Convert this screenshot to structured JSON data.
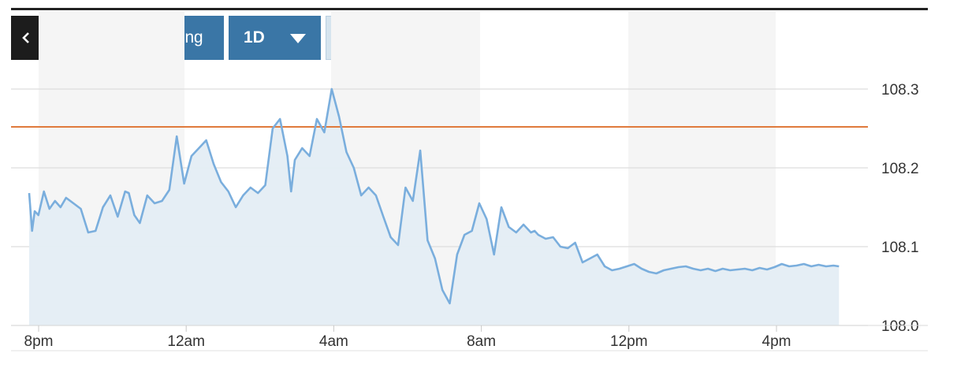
{
  "toolbar": {
    "back_icon": "chevron-left-icon",
    "advanced_label": "Advanced Charting",
    "range_label": "1D",
    "range_icon": "caret-down-icon",
    "dollar_label": "$",
    "percent_label": "%"
  },
  "chart_data": {
    "type": "area",
    "title": "",
    "xlabel": "",
    "ylabel": "",
    "x_ticks": [
      "8pm",
      "12am",
      "4am",
      "8am",
      "12pm",
      "4pm"
    ],
    "y_ticks": [
      "108.0",
      "108.1",
      "108.2",
      "108.3"
    ],
    "ylim": [
      108.0,
      108.3
    ],
    "x_hours": [
      0,
      22
    ],
    "grid": true,
    "shaded_bands": "alternate 4-hour columns",
    "reference_line": {
      "value": 108.252,
      "color": "#e07a3c"
    },
    "line_color": "#7aaedd",
    "fill_color": "#e4edf4",
    "series": [
      {
        "x": [
          0,
          0.08,
          0.15,
          0.25,
          0.4,
          0.55,
          0.7,
          0.85,
          1.0,
          1.2,
          1.4,
          1.6,
          1.8,
          2.0,
          2.2,
          2.4,
          2.6,
          2.7,
          2.85,
          3.0,
          3.2,
          3.4,
          3.6,
          3.8,
          4.0,
          4.2,
          4.4,
          4.6,
          4.8,
          5.0,
          5.2,
          5.4,
          5.6,
          5.8,
          6.0,
          6.2,
          6.4,
          6.6,
          6.8,
          7.0,
          7.1,
          7.2,
          7.4,
          7.6,
          7.8,
          8.0,
          8.2,
          8.4,
          8.6,
          8.8,
          9.0,
          9.2,
          9.4,
          9.6,
          9.8,
          10.0,
          10.2,
          10.4,
          10.6,
          10.8,
          11.0,
          11.2,
          11.4,
          11.6,
          11.8,
          12.0,
          12.2,
          12.4,
          12.6,
          12.8,
          13.0,
          13.2,
          13.4,
          13.6,
          13.7,
          13.8,
          14.0,
          14.2,
          14.4,
          14.6,
          14.8,
          15.0,
          15.2,
          15.4,
          15.6,
          15.8,
          16.0,
          16.2,
          16.4,
          16.6,
          16.8,
          17.0,
          17.2,
          17.4,
          17.6,
          17.8,
          18.0,
          18.2,
          18.4,
          18.6,
          18.8,
          19.0,
          19.2,
          19.4,
          19.6,
          19.8,
          20.0,
          20.2,
          20.4,
          20.6,
          20.8,
          21.0,
          21.2,
          21.4,
          21.6,
          21.8,
          21.95
        ],
        "values": [
          108.168,
          108.12,
          108.145,
          108.14,
          108.17,
          108.148,
          108.158,
          108.15,
          108.162,
          108.155,
          108.148,
          108.118,
          108.12,
          108.15,
          108.165,
          108.138,
          108.17,
          108.168,
          108.14,
          108.13,
          108.165,
          108.155,
          108.158,
          108.172,
          108.24,
          108.18,
          108.215,
          108.225,
          108.235,
          108.205,
          108.182,
          108.17,
          108.15,
          108.165,
          108.175,
          108.168,
          108.178,
          108.25,
          108.262,
          108.215,
          108.17,
          108.21,
          108.225,
          108.215,
          108.262,
          108.245,
          108.3,
          108.265,
          108.22,
          108.2,
          108.165,
          108.175,
          108.165,
          108.138,
          108.112,
          108.102,
          108.175,
          108.158,
          108.222,
          108.108,
          108.085,
          108.045,
          108.028,
          108.09,
          108.115,
          108.12,
          108.155,
          108.135,
          108.09,
          108.15,
          108.125,
          108.118,
          108.128,
          108.118,
          108.12,
          108.115,
          108.11,
          108.112,
          108.1,
          108.098,
          108.105,
          108.08,
          108.085,
          108.09,
          108.075,
          108.07,
          108.072,
          108.075,
          108.078,
          108.072,
          108.068,
          108.066,
          108.07,
          108.072,
          108.074,
          108.075,
          108.072,
          108.07,
          108.072,
          108.069,
          108.072,
          108.07,
          108.071,
          108.072,
          108.07,
          108.073,
          108.071,
          108.074,
          108.078,
          108.075,
          108.076,
          108.078,
          108.075,
          108.077,
          108.075,
          108.076,
          108.075
        ]
      }
    ]
  }
}
